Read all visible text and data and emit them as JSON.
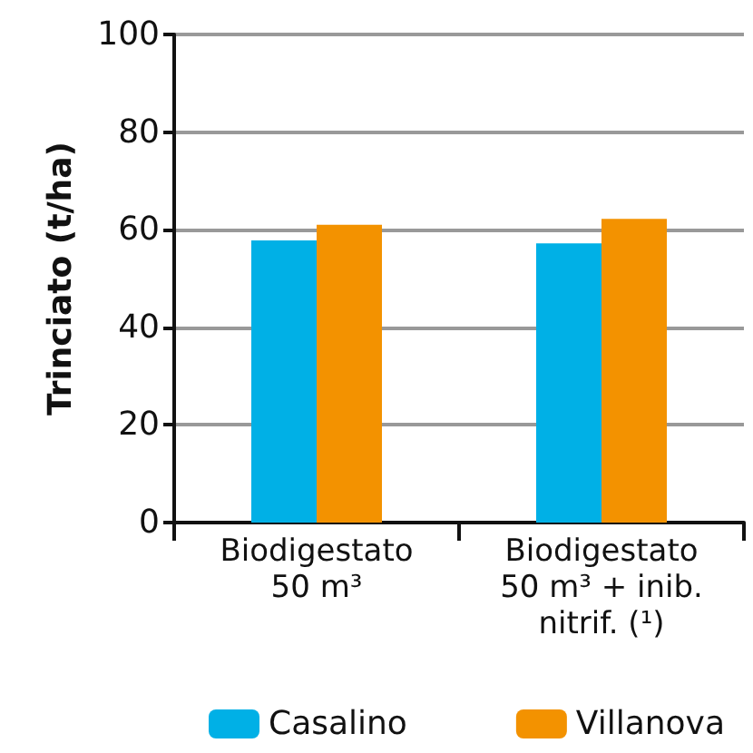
{
  "chart_data": {
    "type": "bar",
    "ylabel": "Trinciato (t/ha)",
    "categories": [
      "Biodigestato\n50 m³",
      "Biodigestato\n50 m³ + inib.\nnitrif. (¹)"
    ],
    "series": [
      {
        "name": "Casalino",
        "color": "#00b0e6",
        "values": [
          57.8,
          57.2
        ]
      },
      {
        "name": "Villanova",
        "color": "#f39200",
        "values": [
          61,
          62.2
        ]
      }
    ],
    "ylim": [
      0,
      100
    ],
    "yticks": [
      0,
      20,
      40,
      60,
      80,
      100
    ],
    "grid": "y",
    "legend": "bottom"
  }
}
